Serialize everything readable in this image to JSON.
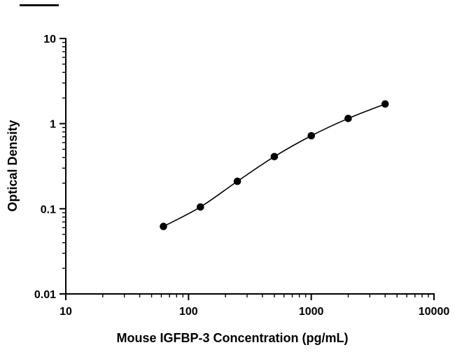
{
  "figure": {
    "background_color": "#ffffff",
    "axis_color": "#000000"
  },
  "chart_data": {
    "type": "scatter",
    "x": [
      62.5,
      125,
      250,
      500,
      1000,
      2000,
      4000
    ],
    "y": [
      0.062,
      0.105,
      0.21,
      0.41,
      0.72,
      1.15,
      1.7
    ],
    "title": "",
    "xlabel": "Mouse IGFBP-3 Concentration (pg/mL)",
    "ylabel": "Optical Density",
    "xscale": "log",
    "yscale": "log",
    "xlim": [
      10,
      10000
    ],
    "ylim": [
      0.01,
      10
    ],
    "x_ticks": [
      10,
      100,
      1000,
      10000
    ],
    "x_tick_labels": [
      "10",
      "100",
      "1000",
      "10000"
    ],
    "y_ticks": [
      0.01,
      0.1,
      1,
      10
    ],
    "y_tick_labels": [
      "0.01",
      "0.1",
      "1",
      "10"
    ],
    "grid": false,
    "legend": false,
    "line_color": "#000000",
    "marker_color": "#000000",
    "marker_shape": "filled-circle"
  }
}
